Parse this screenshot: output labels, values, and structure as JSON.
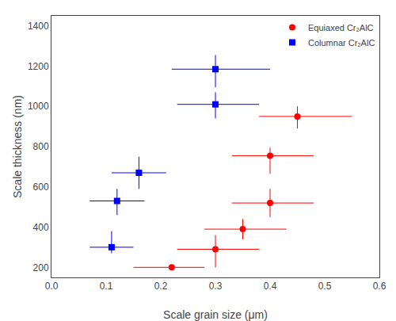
{
  "chart_data": {
    "type": "scatter",
    "xlabel": "Scale grain size (μm)",
    "ylabel": "Scale thickness (nm)",
    "series": [
      {
        "name": "Equiaxed Cr₂AlC",
        "color": "#FF0000",
        "marker": "circle",
        "x": [
          0.22,
          0.3,
          0.35,
          0.4,
          0.4,
          0.45
        ],
        "values": [
          200,
          290,
          390,
          520,
          755,
          950
        ],
        "xerr_lo": [
          0.07,
          0.07,
          0.07,
          0.07,
          0.07,
          0.07
        ],
        "xerr_hi": [
          0.06,
          0.08,
          0.08,
          0.08,
          0.08,
          0.1
        ],
        "yerr_lo": [
          0,
          90,
          50,
          70,
          90,
          60
        ],
        "yerr_hi": [
          0,
          70,
          50,
          70,
          40,
          50
        ]
      },
      {
        "name": "Columnar Cr₂AlC",
        "color": "#0000FF",
        "marker": "square",
        "x": [
          0.11,
          0.12,
          0.16,
          0.3,
          0.3
        ],
        "values": [
          300,
          530,
          670,
          1010,
          1185
        ],
        "xerr_lo": [
          0.04,
          0.05,
          0.05,
          0.07,
          0.08
        ],
        "xerr_hi": [
          0.04,
          0.05,
          0.05,
          0.08,
          0.1
        ],
        "yerr_lo": [
          30,
          70,
          80,
          70,
          90
        ],
        "yerr_hi": [
          80,
          60,
          80,
          60,
          70
        ]
      }
    ],
    "xlim": [
      0.0,
      0.6
    ],
    "ylim": [
      150,
      1450
    ],
    "xticks": [
      {
        "value": 0.0,
        "label": "0.0"
      },
      0.1,
      0.2,
      0.3,
      0.4,
      0.5,
      0.6
    ],
    "yticks": [
      200,
      400,
      600,
      800,
      1000,
      1200,
      1400
    ],
    "grid": false,
    "legend": "upper right"
  }
}
